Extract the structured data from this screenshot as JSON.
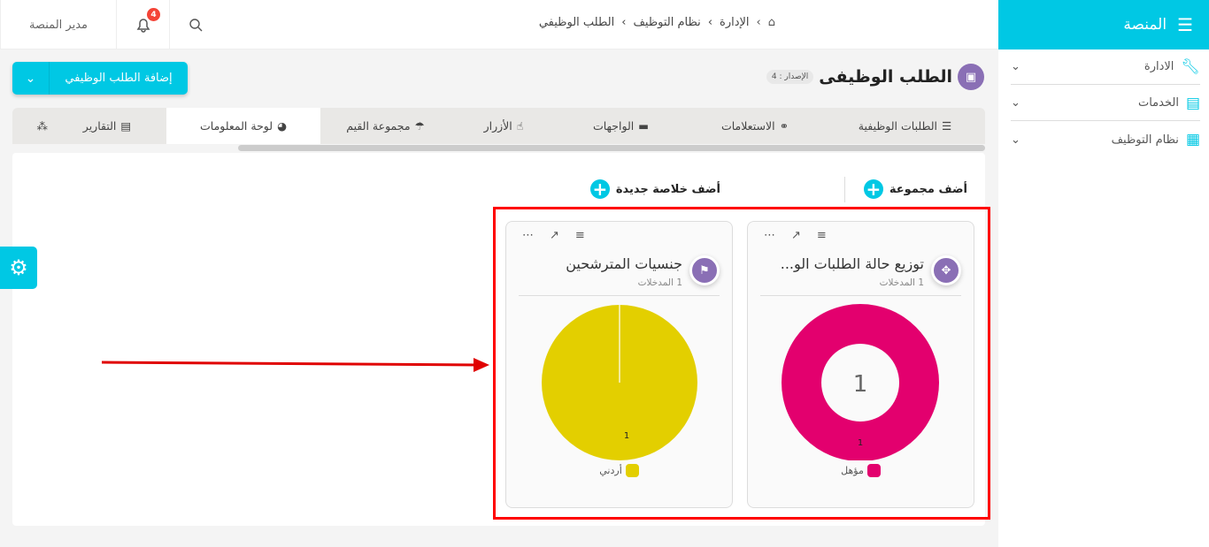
{
  "sidebar": {
    "title": "المنصة",
    "items": [
      {
        "label": "الادارة",
        "icon": "wrench-icon"
      },
      {
        "label": "الخدمات",
        "icon": "server-icon"
      },
      {
        "label": "نظام التوظيف",
        "icon": "qr-icon"
      }
    ]
  },
  "topbar": {
    "user": "مدير المنصة",
    "notifications": "4",
    "breadcrumb": [
      "الإدارة",
      "نظام التوظيف",
      "الطلب الوظيفي"
    ]
  },
  "page": {
    "title": "الطلب الوظيفى",
    "version": "الإصدار : 4",
    "add_button": "إضافة الطلب الوظيفي"
  },
  "tabs": [
    {
      "label": "الطلبات الوظيفية"
    },
    {
      "label": "الاستعلامات"
    },
    {
      "label": "الواجهات"
    },
    {
      "label": "الأزرار"
    },
    {
      "label": "مجموعة القيم"
    },
    {
      "label": "لوحة المعلومات",
      "active": true
    },
    {
      "label": "التقارير"
    }
  ],
  "actions": {
    "add_group": "أضف مجموعة",
    "add_summary": "أضف خلاصة جديدة"
  },
  "colors": {
    "accent": "#00c8e4",
    "badge": "#8a6fb5",
    "donut": "#e3006e",
    "pie": "#e3cf00",
    "highlight": "#ff0000"
  },
  "chart_data": [
    {
      "type": "pie",
      "variant": "donut",
      "title": "توزيع حالة الطلبات الو...",
      "subtitle": "1 المدخلات",
      "center_label": "1",
      "categories": [
        "مؤهل"
      ],
      "values": [
        1
      ],
      "data_labels": [
        "1"
      ]
    },
    {
      "type": "pie",
      "title": "جنسيات المترشحين",
      "subtitle": "1 المدخلات",
      "categories": [
        "أردني"
      ],
      "values": [
        1
      ],
      "data_labels": [
        "1"
      ]
    }
  ]
}
